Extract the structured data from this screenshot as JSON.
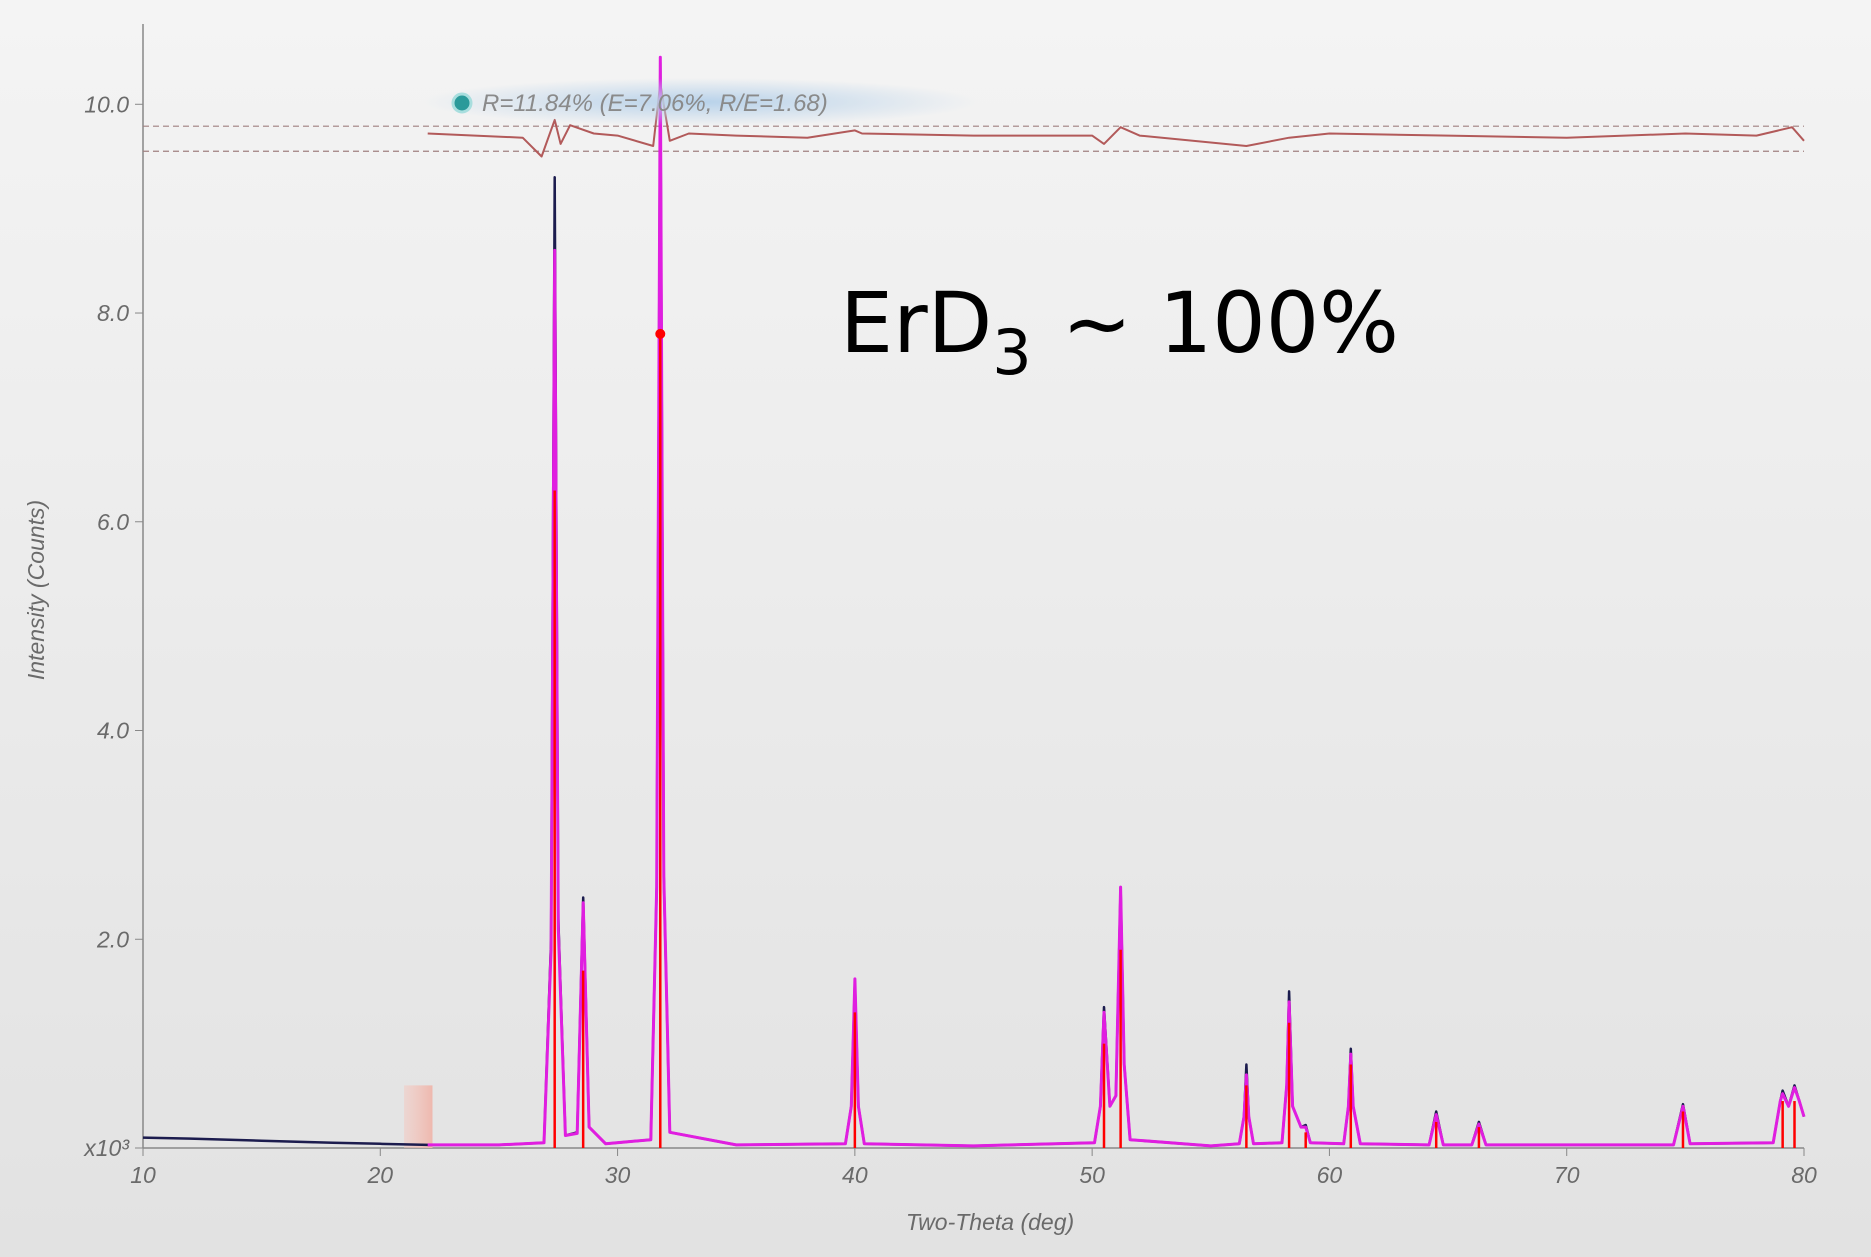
{
  "chart_data": {
    "type": "xrd-pattern",
    "x_label": "Two-Theta (deg)",
    "y_label": "Intensity (Counts)",
    "legend_text": "R=11.84% (E=7.06%, R/E=1.68)",
    "annotation": {
      "text": "ErD",
      "subscript": "3",
      "suffix": "~ 100%"
    },
    "xlim": [
      10,
      80
    ],
    "xticks": [
      10,
      20,
      30,
      40,
      50,
      60,
      70,
      80
    ],
    "ylim": [
      0,
      10.75
    ],
    "yticks": [
      {
        "value": 0,
        "label": "x10³"
      },
      {
        "value": 2,
        "label": "2.0"
      },
      {
        "value": 4,
        "label": "4.0"
      },
      {
        "value": 6,
        "label": "6.0"
      },
      {
        "value": 8,
        "label": "8.0"
      },
      {
        "value": 10,
        "label": "10.0"
      }
    ],
    "excluded_range": [
      21,
      22.2
    ],
    "x": [
      10,
      12,
      15,
      18,
      20,
      22,
      25,
      26.9,
      27.2,
      27.35,
      27.5,
      27.8,
      28.3,
      28.55,
      28.8,
      29.5,
      31.4,
      31.65,
      31.8,
      31.95,
      32.2,
      35,
      39.6,
      39.85,
      40,
      40.15,
      40.4,
      45,
      50.1,
      50.35,
      50.5,
      50.75,
      51.0,
      51.2,
      51.35,
      51.6,
      55,
      56.2,
      56.4,
      56.5,
      56.6,
      56.8,
      58.0,
      58.2,
      58.3,
      58.45,
      58.8,
      59.0,
      59.2,
      60.6,
      60.8,
      60.9,
      61.0,
      61.3,
      64.2,
      64.5,
      64.8,
      66.0,
      66.3,
      66.6,
      74.5,
      74.9,
      75.2,
      78.7,
      79.0,
      79.1,
      79.35,
      79.6,
      79.8,
      80
    ],
    "series": [
      {
        "color": "#1c1c4e",
        "values": [
          0.1,
          0.09,
          0.07,
          0.05,
          0.04,
          0.03,
          0.03,
          0.05,
          2.0,
          9.3,
          2.2,
          0.12,
          0.15,
          2.4,
          0.2,
          0.04,
          0.08,
          2.5,
          10.4,
          2.6,
          0.15,
          0.03,
          0.04,
          0.4,
          1.6,
          0.4,
          0.04,
          0.02,
          0.05,
          0.4,
          1.35,
          0.4,
          0.5,
          2.5,
          0.8,
          0.08,
          0.02,
          0.04,
          0.3,
          0.8,
          0.3,
          0.04,
          0.05,
          0.6,
          1.5,
          0.4,
          0.2,
          0.22,
          0.05,
          0.04,
          0.4,
          0.95,
          0.4,
          0.04,
          0.03,
          0.35,
          0.03,
          0.03,
          0.25,
          0.03,
          0.03,
          0.42,
          0.04,
          0.05,
          0.45,
          0.55,
          0.4,
          0.6,
          0.45,
          0.3
        ]
      },
      {
        "color": "#e01ee0",
        "values": [
          null,
          null,
          null,
          null,
          null,
          0.03,
          0.03,
          0.05,
          1.9,
          8.6,
          2.1,
          0.12,
          0.14,
          2.35,
          0.2,
          0.04,
          0.08,
          2.5,
          10.45,
          2.6,
          0.15,
          0.03,
          0.04,
          0.4,
          1.62,
          0.4,
          0.04,
          0.02,
          0.05,
          0.4,
          1.3,
          0.4,
          0.5,
          2.5,
          0.8,
          0.08,
          0.02,
          0.04,
          0.3,
          0.7,
          0.3,
          0.04,
          0.05,
          0.6,
          1.4,
          0.4,
          0.2,
          0.2,
          0.05,
          0.04,
          0.4,
          0.9,
          0.4,
          0.04,
          0.03,
          0.32,
          0.03,
          0.03,
          0.23,
          0.03,
          0.03,
          0.4,
          0.04,
          0.05,
          0.45,
          0.52,
          0.4,
          0.58,
          0.45,
          0.3
        ]
      }
    ],
    "reference": {
      "color": "#ff0000",
      "x": [
        27.35,
        28.55,
        31.8,
        40,
        50.5,
        51.2,
        56.5,
        58.3,
        59.0,
        60.9,
        64.5,
        66.3,
        74.9,
        79.1,
        79.6
      ],
      "values": [
        6.3,
        1.7,
        7.8,
        1.3,
        1.0,
        1.9,
        0.6,
        1.2,
        0.15,
        0.8,
        0.25,
        0.2,
        0.35,
        0.45,
        0.45
      ]
    },
    "difference": {
      "color": "#b25a5a",
      "band": [
        9.55,
        9.79
      ],
      "x": [
        22,
        24,
        26,
        26.8,
        27.35,
        27.6,
        28,
        29,
        30,
        31.5,
        31.8,
        32.2,
        33,
        35,
        38,
        40,
        40.3,
        45,
        50,
        50.5,
        51.2,
        52,
        56.5,
        58.3,
        60,
        65,
        70,
        75,
        78,
        79.5,
        80
      ],
      "values": [
        9.72,
        9.7,
        9.68,
        9.5,
        9.85,
        9.62,
        9.8,
        9.72,
        9.7,
        9.6,
        10.2,
        9.65,
        9.72,
        9.7,
        9.68,
        9.75,
        9.72,
        9.7,
        9.7,
        9.62,
        9.78,
        9.7,
        9.6,
        9.68,
        9.72,
        9.7,
        9.68,
        9.72,
        9.7,
        9.78,
        9.65
      ]
    }
  }
}
